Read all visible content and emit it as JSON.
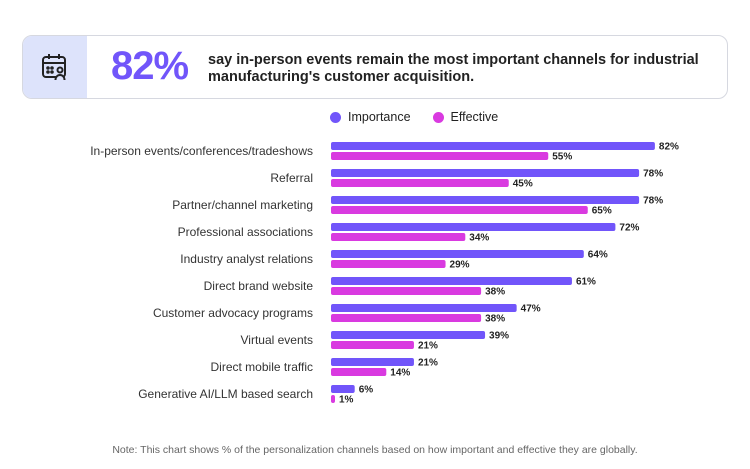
{
  "header": {
    "stat": "82%",
    "text": "say in-person events remain the most important channels for industrial manufacturing's customer acquisition.",
    "icon": "calendar-person-icon"
  },
  "chart_data": {
    "type": "bar",
    "orientation": "horizontal",
    "categories": [
      "In-person events/conferences/tradeshows",
      "Referral",
      "Partner/channel marketing",
      "Professional associations",
      "Industry analyst relations",
      "Direct brand website",
      "Customer advocacy programs",
      "Virtual events",
      "Direct mobile traffic",
      "Generative AI/LLM based search"
    ],
    "series": [
      {
        "name": "Importance",
        "color": "#7155fa",
        "values": [
          82,
          78,
          78,
          72,
          64,
          61,
          47,
          39,
          21,
          6
        ]
      },
      {
        "name": "Effective",
        "color": "#d93ae0",
        "values": [
          55,
          45,
          65,
          34,
          29,
          38,
          38,
          21,
          14,
          1
        ]
      }
    ],
    "value_format": "%",
    "legend": "top",
    "grid": false,
    "xlim": [
      0,
      100
    ]
  },
  "note": "Note: This chart shows % of the personalization channels based on how important and effective they are globally."
}
